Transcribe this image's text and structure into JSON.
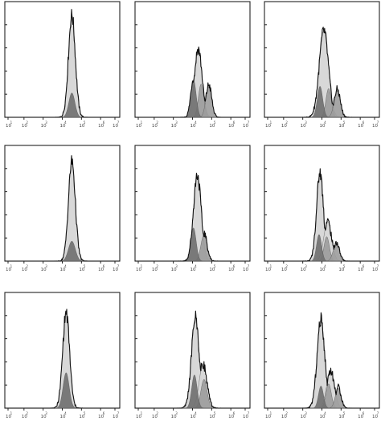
{
  "chart_data": {
    "type": "histogram-grid",
    "rows": 3,
    "cols": 3,
    "x_scale": "log",
    "xlim": [
      10,
      10000000
    ],
    "x_tick_labels": [
      "10",
      "10",
      "10",
      "10",
      "10",
      "10",
      "10"
    ],
    "x_tick_exponents": [
      "1",
      "2",
      "3",
      "4",
      "5",
      "6",
      "7"
    ],
    "grid": false,
    "colors": {
      "total": "#111111",
      "light_fill": "#d6d6d6",
      "mid_fill": "#9c9c9c",
      "dark_fill": "#6f6f6f"
    },
    "panels": [
      {
        "row": 0,
        "col": 0,
        "components": [
          {
            "center": 4.5,
            "width": 0.18,
            "height": 0.92,
            "shade": "light"
          },
          {
            "center": 4.5,
            "width": 0.16,
            "height": 0.22,
            "shade": "dark"
          }
        ]
      },
      {
        "row": 0,
        "col": 1,
        "components": [
          {
            "center": 4.3,
            "width": 0.2,
            "height": 0.62,
            "shade": "light"
          },
          {
            "center": 4.05,
            "width": 0.14,
            "height": 0.34,
            "shade": "dark"
          },
          {
            "center": 4.45,
            "width": 0.14,
            "height": 0.3,
            "shade": "mid"
          },
          {
            "center": 4.85,
            "width": 0.15,
            "height": 0.28,
            "shade": "mid"
          }
        ]
      },
      {
        "row": 0,
        "col": 2,
        "components": [
          {
            "center": 4.1,
            "width": 0.24,
            "height": 0.78,
            "shade": "light"
          },
          {
            "center": 3.9,
            "width": 0.14,
            "height": 0.28,
            "shade": "dark"
          },
          {
            "center": 4.35,
            "width": 0.14,
            "height": 0.26,
            "shade": "mid"
          },
          {
            "center": 4.8,
            "width": 0.16,
            "height": 0.24,
            "shade": "mid"
          }
        ]
      },
      {
        "row": 1,
        "col": 0,
        "components": [
          {
            "center": 4.5,
            "width": 0.18,
            "height": 0.9,
            "shade": "light"
          },
          {
            "center": 4.5,
            "width": 0.18,
            "height": 0.18,
            "shade": "dark"
          }
        ]
      },
      {
        "row": 1,
        "col": 1,
        "components": [
          {
            "center": 4.25,
            "width": 0.2,
            "height": 0.78,
            "shade": "light"
          },
          {
            "center": 4.05,
            "width": 0.14,
            "height": 0.3,
            "shade": "dark"
          },
          {
            "center": 4.6,
            "width": 0.16,
            "height": 0.24,
            "shade": "mid"
          }
        ]
      },
      {
        "row": 1,
        "col": 2,
        "components": [
          {
            "center": 3.9,
            "width": 0.18,
            "height": 0.8,
            "shade": "light"
          },
          {
            "center": 4.3,
            "width": 0.2,
            "height": 0.36,
            "shade": "light"
          },
          {
            "center": 3.85,
            "width": 0.13,
            "height": 0.24,
            "shade": "dark"
          },
          {
            "center": 4.25,
            "width": 0.14,
            "height": 0.22,
            "shade": "mid"
          },
          {
            "center": 4.75,
            "width": 0.16,
            "height": 0.16,
            "shade": "mid"
          }
        ]
      },
      {
        "row": 2,
        "col": 0,
        "components": [
          {
            "center": 4.2,
            "width": 0.18,
            "height": 0.86,
            "shade": "light"
          },
          {
            "center": 4.2,
            "width": 0.16,
            "height": 0.32,
            "shade": "dark"
          }
        ]
      },
      {
        "row": 2,
        "col": 1,
        "components": [
          {
            "center": 4.15,
            "width": 0.2,
            "height": 0.82,
            "shade": "light"
          },
          {
            "center": 4.55,
            "width": 0.2,
            "height": 0.4,
            "shade": "light"
          },
          {
            "center": 4.1,
            "width": 0.14,
            "height": 0.3,
            "shade": "dark"
          },
          {
            "center": 4.6,
            "width": 0.16,
            "height": 0.26,
            "shade": "mid"
          }
        ]
      },
      {
        "row": 2,
        "col": 2,
        "components": [
          {
            "center": 3.95,
            "width": 0.2,
            "height": 0.8,
            "shade": "light"
          },
          {
            "center": 4.45,
            "width": 0.2,
            "height": 0.34,
            "shade": "light"
          },
          {
            "center": 3.95,
            "width": 0.13,
            "height": 0.2,
            "shade": "dark"
          },
          {
            "center": 4.35,
            "width": 0.14,
            "height": 0.22,
            "shade": "mid"
          },
          {
            "center": 4.85,
            "width": 0.15,
            "height": 0.18,
            "shade": "mid"
          }
        ]
      }
    ]
  }
}
